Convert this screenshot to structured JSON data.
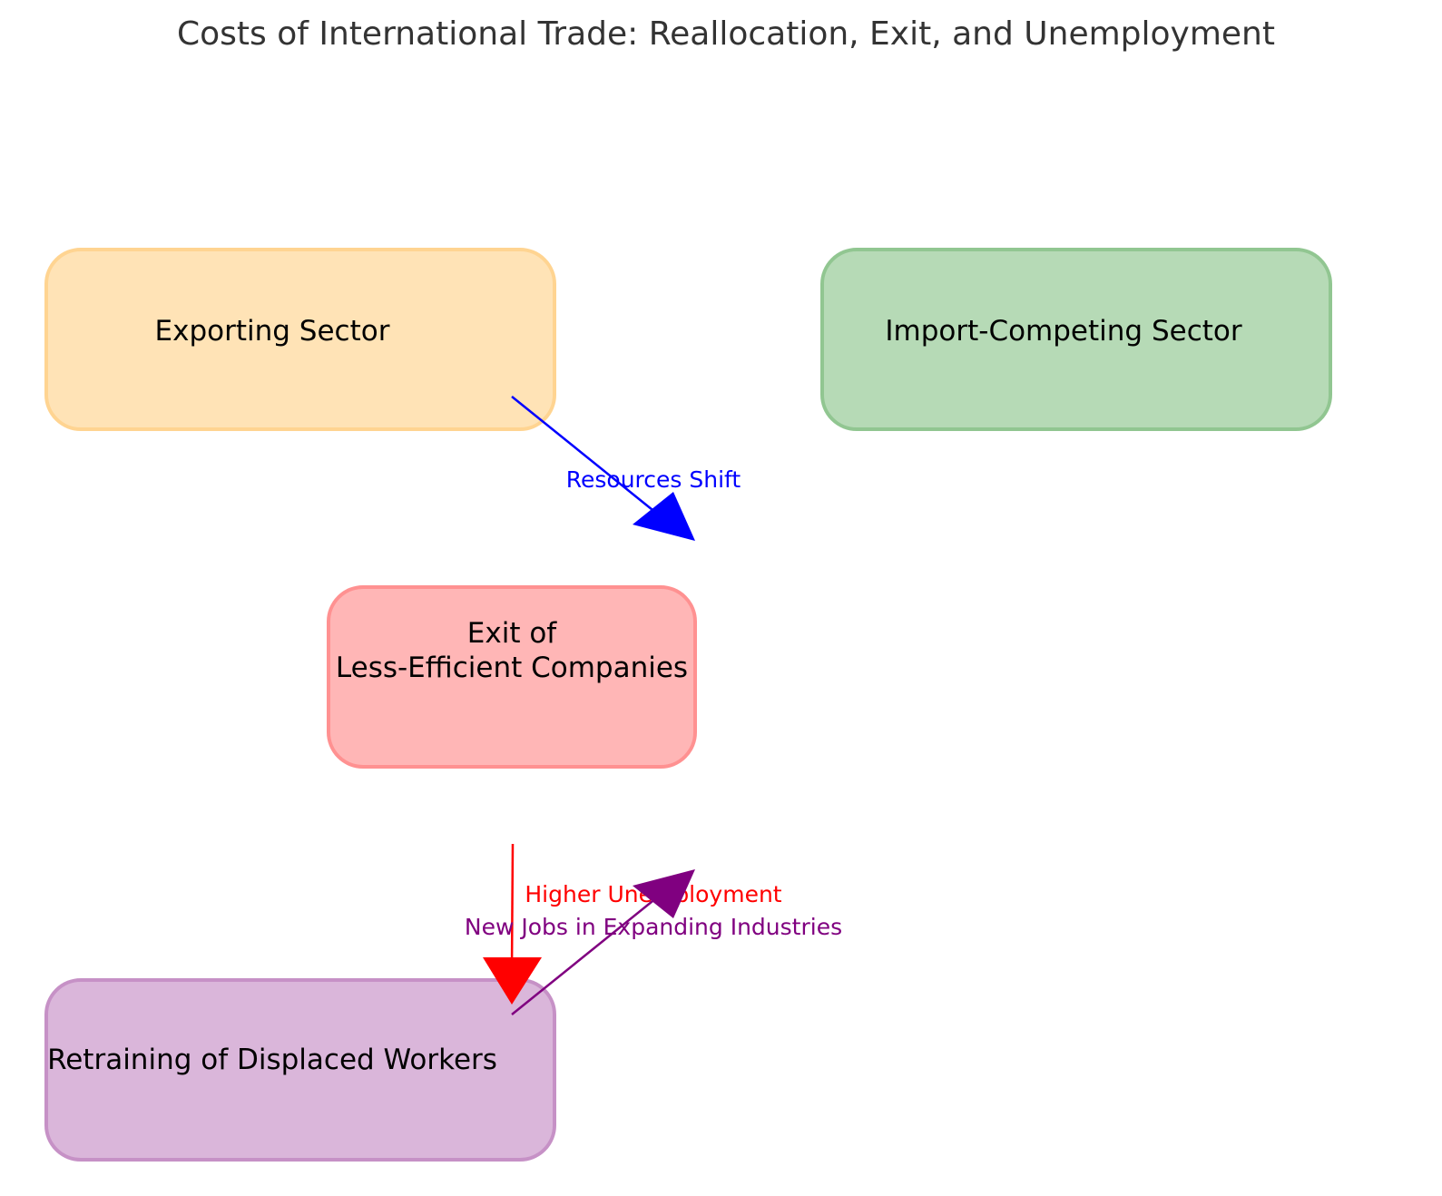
{
  "diagram": {
    "title": "Costs of International Trade: Reallocation, Exit, and Unemployment",
    "nodes": [
      {
        "id": "exporting",
        "lines": [
          "Exporting Sector"
        ],
        "fill": "#ffe2b3",
        "stroke": "#ffd28c"
      },
      {
        "id": "import",
        "lines": [
          "Import-Competing Sector"
        ],
        "fill": "#b3d9b3",
        "stroke": "#8cc48c"
      },
      {
        "id": "exit",
        "lines": [
          "Exit of",
          "Less-Efficient Companies"
        ],
        "fill": "#ffb3b3",
        "stroke": "#ff8c8c"
      },
      {
        "id": "retraining",
        "lines": [
          "Retraining of Displaced Workers"
        ],
        "fill": "#d9b3d9",
        "stroke": "#c48cc4"
      }
    ],
    "edges": [
      {
        "id": "resources-shift",
        "label": "Resources Shift",
        "color": "#0000ff"
      },
      {
        "id": "higher-unemployment",
        "label": "Higher Unemployment",
        "color": "#ff0000"
      },
      {
        "id": "new-jobs",
        "label": "New Jobs in Expanding Industries",
        "color": "#800080"
      }
    ]
  }
}
